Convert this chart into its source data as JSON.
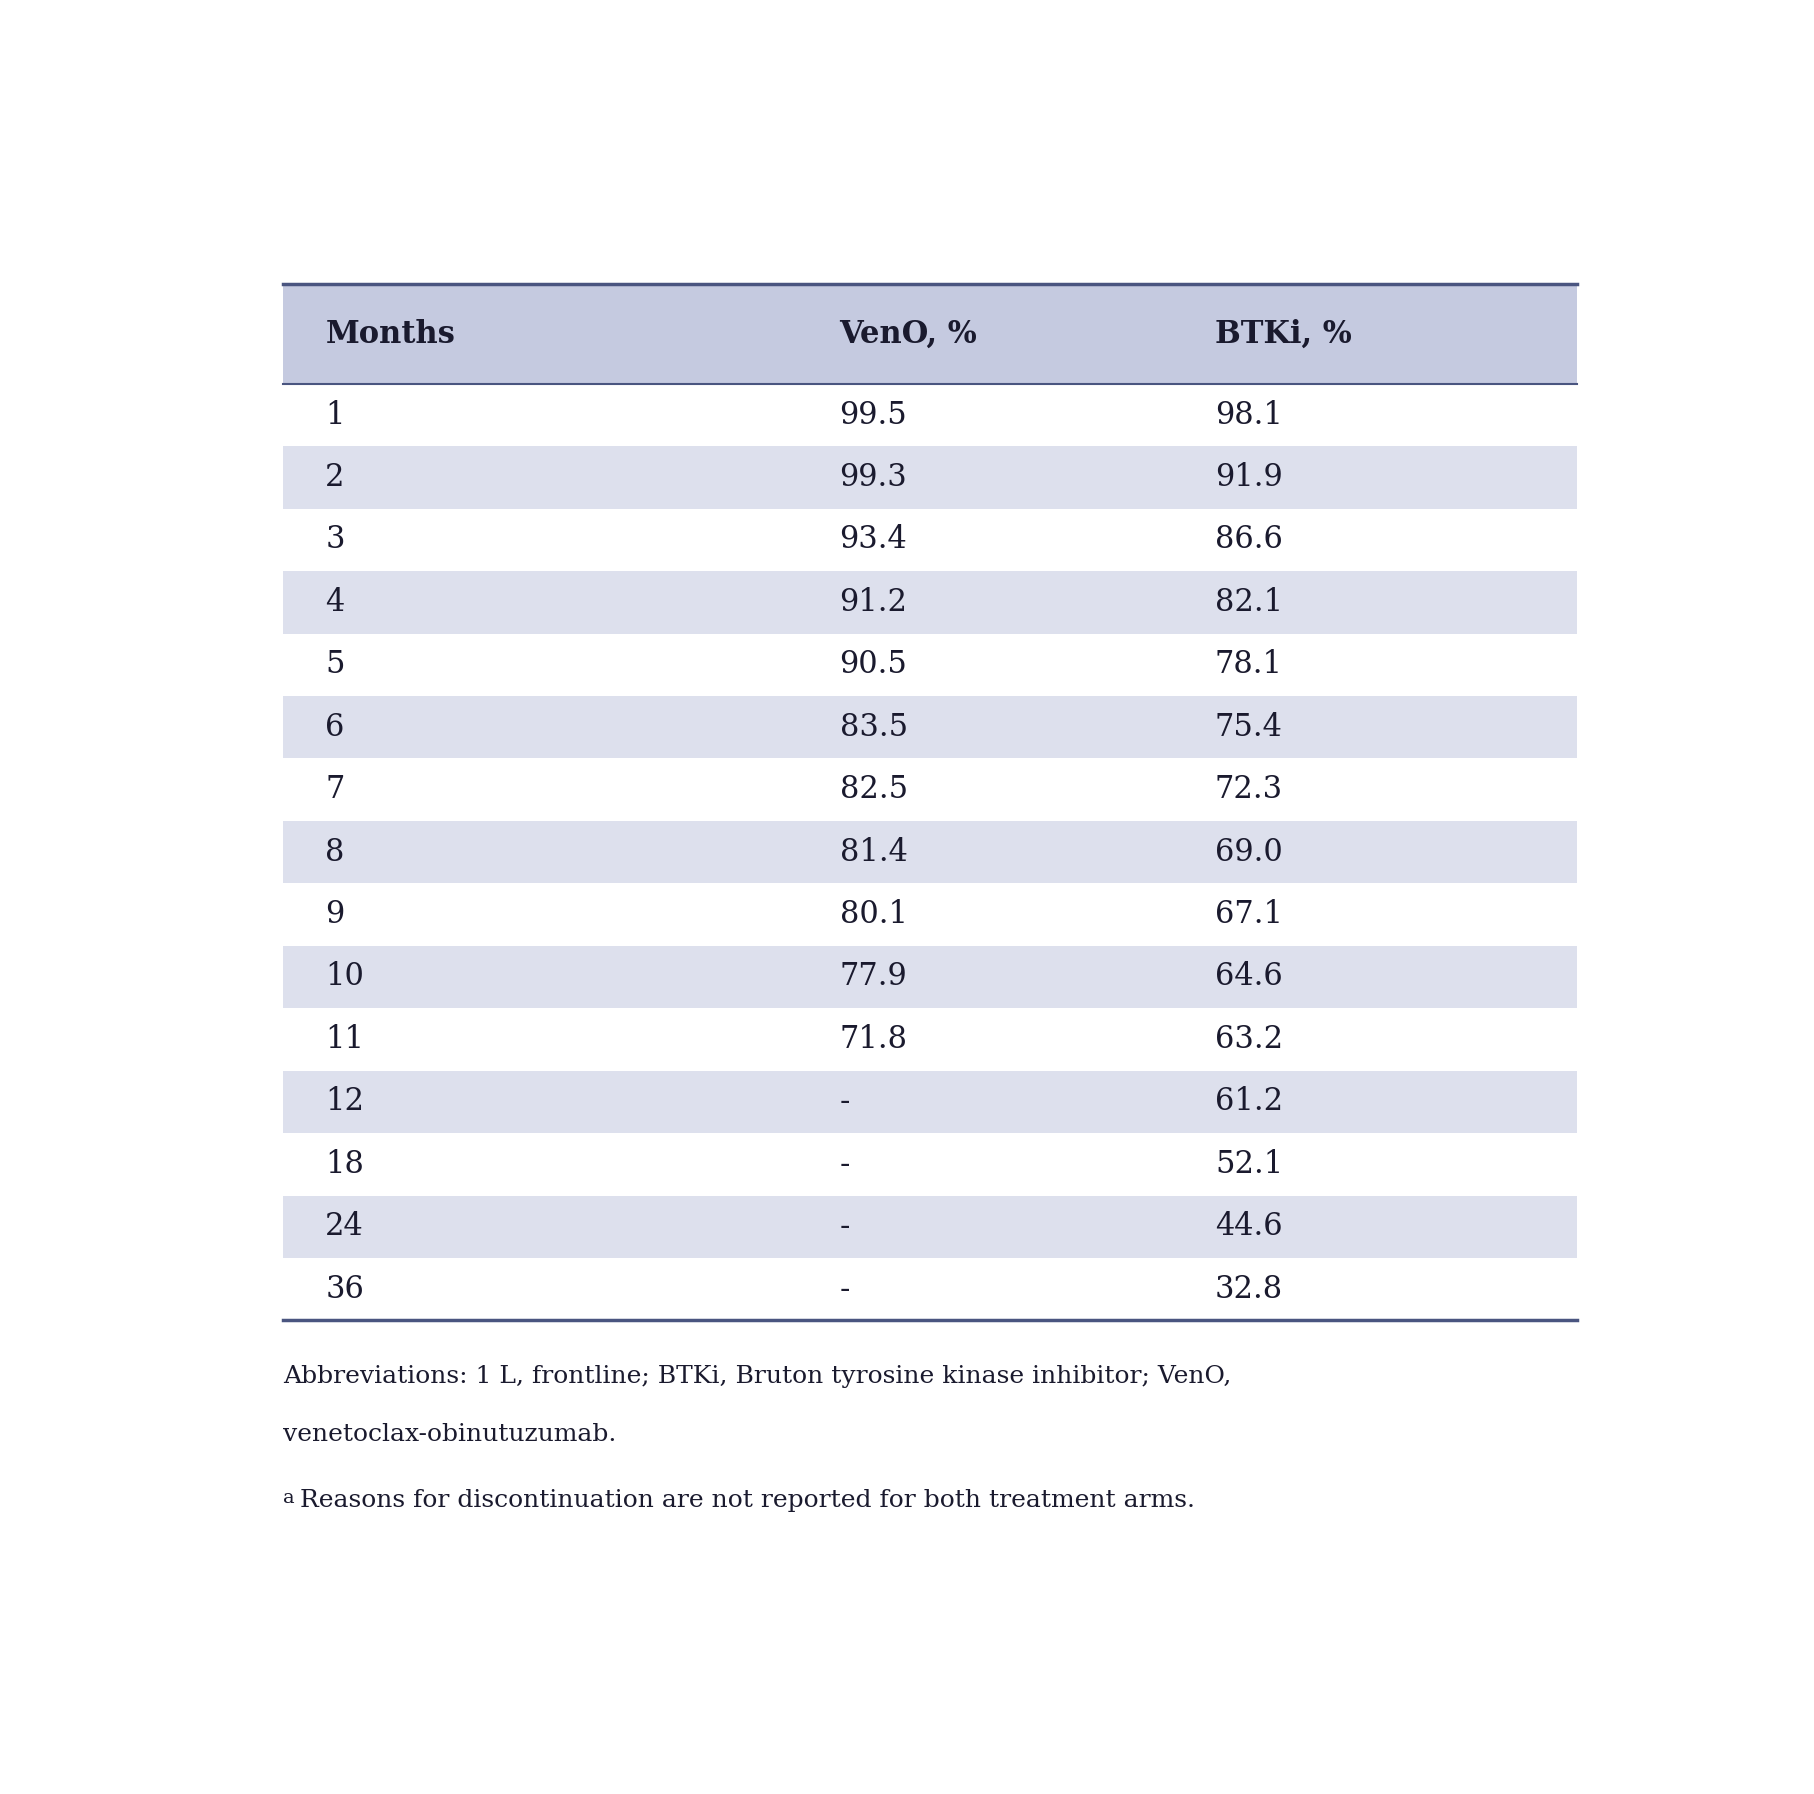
{
  "header": [
    "Months",
    "VenO, %",
    "BTKi, %"
  ],
  "rows": [
    [
      "1",
      "99.5",
      "98.1"
    ],
    [
      "2",
      "99.3",
      "91.9"
    ],
    [
      "3",
      "93.4",
      "86.6"
    ],
    [
      "4",
      "91.2",
      "82.1"
    ],
    [
      "5",
      "90.5",
      "78.1"
    ],
    [
      "6",
      "83.5",
      "75.4"
    ],
    [
      "7",
      "82.5",
      "72.3"
    ],
    [
      "8",
      "81.4",
      "69.0"
    ],
    [
      "9",
      "80.1",
      "67.1"
    ],
    [
      "10",
      "77.9",
      "64.6"
    ],
    [
      "11",
      "71.8",
      "63.2"
    ],
    [
      "12",
      "-",
      "61.2"
    ],
    [
      "18",
      "-",
      "52.1"
    ],
    [
      "24",
      "-",
      "44.6"
    ],
    [
      "36",
      "-",
      "32.8"
    ]
  ],
  "header_bg": "#c5cae0",
  "row_bg_even": "#dde0ed",
  "row_bg_odd": "#ffffff",
  "text_color": "#1a1a2e",
  "footnote_line1": "Abbreviations: 1 L, frontline; BTKi, Bruton tyrosine kinase inhibitor; VenO,",
  "footnote_line2": "venetoclax-obinutuzumab.",
  "footnote_line3a": "a",
  "footnote_line3b": "Reasons for discontinuation are not reported for both treatment arms.",
  "figure_bg": "#ffffff",
  "border_color": "#4a5580",
  "header_fontsize": 22,
  "row_fontsize": 22,
  "footnote_fontsize": 18
}
